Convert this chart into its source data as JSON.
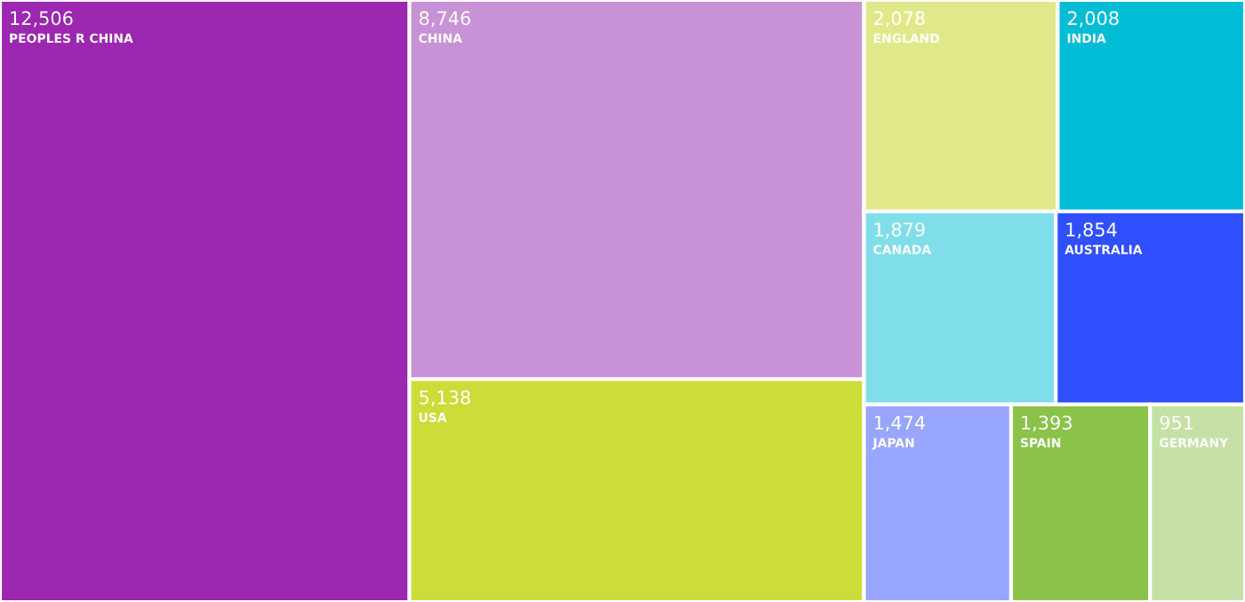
{
  "chart_data": {
    "type": "other",
    "categories": [
      "PEOPLES R CHINA",
      "CHINA",
      "USA",
      "ENGLAND",
      "INDIA",
      "CANADA",
      "AUSTRALIA",
      "JAPAN",
      "SPAIN",
      "GERMANY"
    ],
    "values": [
      12506,
      8746,
      5138,
      2078,
      2008,
      1879,
      1854,
      1474,
      1393,
      951
    ],
    "value_labels": [
      "12,506",
      "8,746",
      "5,138",
      "2,078",
      "2,008",
      "1,879",
      "1,854",
      "1,474",
      "1,393",
      "951"
    ],
    "colors": [
      "#9c27b0",
      "#c992d6",
      "#cddc39",
      "#e1e88a",
      "#00bcd4",
      "#80deea",
      "#304ffe",
      "#98a6ff",
      "#8bc34a",
      "#c5e1a5"
    ]
  }
}
